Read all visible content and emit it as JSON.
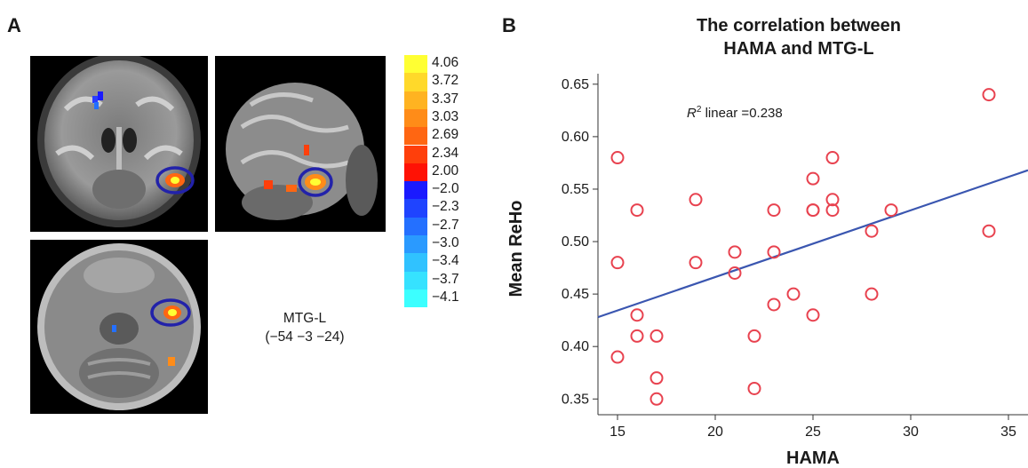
{
  "panels": {
    "a": "A",
    "b": "B"
  },
  "colorbar": {
    "labels": [
      "4.06",
      "3.72",
      "3.37",
      "3.03",
      "2.69",
      "2.34",
      "2.00",
      "−2.0",
      "−2.3",
      "−2.7",
      "−3.0",
      "−3.4",
      "−3.7",
      "−4.1"
    ],
    "colors": [
      "#ffff33",
      "#ffd92a",
      "#ffb321",
      "#ff8c18",
      "#ff6612",
      "#ff3f0b",
      "#ff1205",
      "#1a1aff",
      "#1f44ff",
      "#2470ff",
      "#2a9aff",
      "#30c2ff",
      "#36e2ff",
      "#3cffff"
    ]
  },
  "region": {
    "name": "MTG-L",
    "coords": "(−54 −3 −24)"
  },
  "chart_data": {
    "type": "scatter",
    "title_lines": [
      "The correlation between",
      "HAMA and MTG-L"
    ],
    "xlabel": "HAMA",
    "ylabel": "Mean ReHo",
    "xlim": [
      14,
      36
    ],
    "ylim": [
      0.335,
      0.66
    ],
    "xticks": [
      15,
      20,
      25,
      30,
      35
    ],
    "yticks": [
      "0.35",
      "0.40",
      "0.45",
      "0.50",
      "0.55",
      "0.60",
      "0.65"
    ],
    "annotation": {
      "var": "R",
      "sup": "2",
      "text": " linear =0.238"
    },
    "points": [
      [
        15,
        0.58
      ],
      [
        15,
        0.48
      ],
      [
        15,
        0.39
      ],
      [
        16,
        0.53
      ],
      [
        16,
        0.43
      ],
      [
        16,
        0.41
      ],
      [
        17,
        0.41
      ],
      [
        17,
        0.37
      ],
      [
        17,
        0.35
      ],
      [
        19,
        0.54
      ],
      [
        19,
        0.48
      ],
      [
        21,
        0.49
      ],
      [
        21,
        0.47
      ],
      [
        22,
        0.41
      ],
      [
        22,
        0.36
      ],
      [
        23,
        0.53
      ],
      [
        23,
        0.49
      ],
      [
        23,
        0.44
      ],
      [
        24,
        0.45
      ],
      [
        25,
        0.56
      ],
      [
        25,
        0.53
      ],
      [
        25,
        0.53
      ],
      [
        25,
        0.43
      ],
      [
        26,
        0.58
      ],
      [
        26,
        0.54
      ],
      [
        26,
        0.53
      ],
      [
        28,
        0.51
      ],
      [
        28,
        0.45
      ],
      [
        29,
        0.53
      ],
      [
        34,
        0.64
      ],
      [
        34,
        0.51
      ]
    ],
    "fit_line": {
      "x": [
        14,
        36
      ],
      "y": [
        0.428,
        0.568
      ]
    },
    "marker_color": "#e8424f",
    "line_color": "#3a56b0"
  }
}
